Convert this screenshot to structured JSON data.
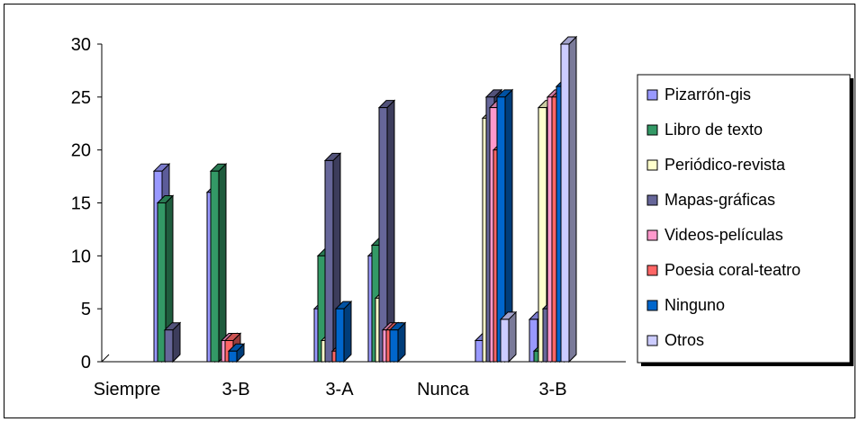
{
  "chart_data": {
    "type": "bar",
    "categories": [
      "Siempre",
      "3-B",
      "3-A",
      "Nunca",
      "3-B"
    ],
    "yticks": [
      "0",
      "5",
      "10",
      "15",
      "20",
      "25",
      "30"
    ],
    "ylim": [
      0,
      30
    ],
    "legend_position": "right",
    "series": [
      {
        "name": "Pizarrón-gis",
        "color": "#9999ff",
        "values": [
          18,
          16,
          5,
          10,
          2
        ]
      },
      {
        "name": "Libro de texto",
        "color": "#339966",
        "values": [
          15,
          18,
          10,
          11,
          0
        ]
      },
      {
        "name": "Periódico-revista",
        "color": "#ffffcc",
        "values": [
          0,
          0,
          2,
          6,
          23
        ]
      },
      {
        "name": "Mapas-gráficas",
        "color": "#666699",
        "values": [
          3,
          0,
          19,
          24,
          25
        ]
      },
      {
        "name": "Videos-películas",
        "color": "#ff99cc",
        "values": [
          0,
          2,
          0,
          3,
          24
        ]
      },
      {
        "name": "Poesia coral-teatro",
        "color": "#ff6666",
        "values": [
          0,
          2,
          1,
          3,
          20
        ]
      },
      {
        "name": "Ninguno",
        "color": "#0066cc",
        "values": [
          0,
          1,
          5,
          3,
          25
        ]
      },
      {
        "name": "Otros",
        "color": "#ccccff",
        "values": [
          0,
          0,
          0,
          0,
          4
        ]
      }
    ],
    "series_group2": [
      {
        "name": "Pizarrón-gis",
        "values": [
          4
        ]
      },
      {
        "name": "Libro de texto",
        "values": [
          1
        ]
      },
      {
        "name": "Periódico-revista",
        "values": [
          24
        ]
      },
      {
        "name": "Mapas-gráficas",
        "values": [
          5
        ]
      },
      {
        "name": "Videos-películas",
        "values": [
          25
        ]
      },
      {
        "name": "Poesia coral-teatro",
        "values": [
          25
        ]
      },
      {
        "name": "Ninguno",
        "values": [
          26
        ]
      },
      {
        "name": "Otros",
        "values": [
          30
        ]
      }
    ]
  }
}
